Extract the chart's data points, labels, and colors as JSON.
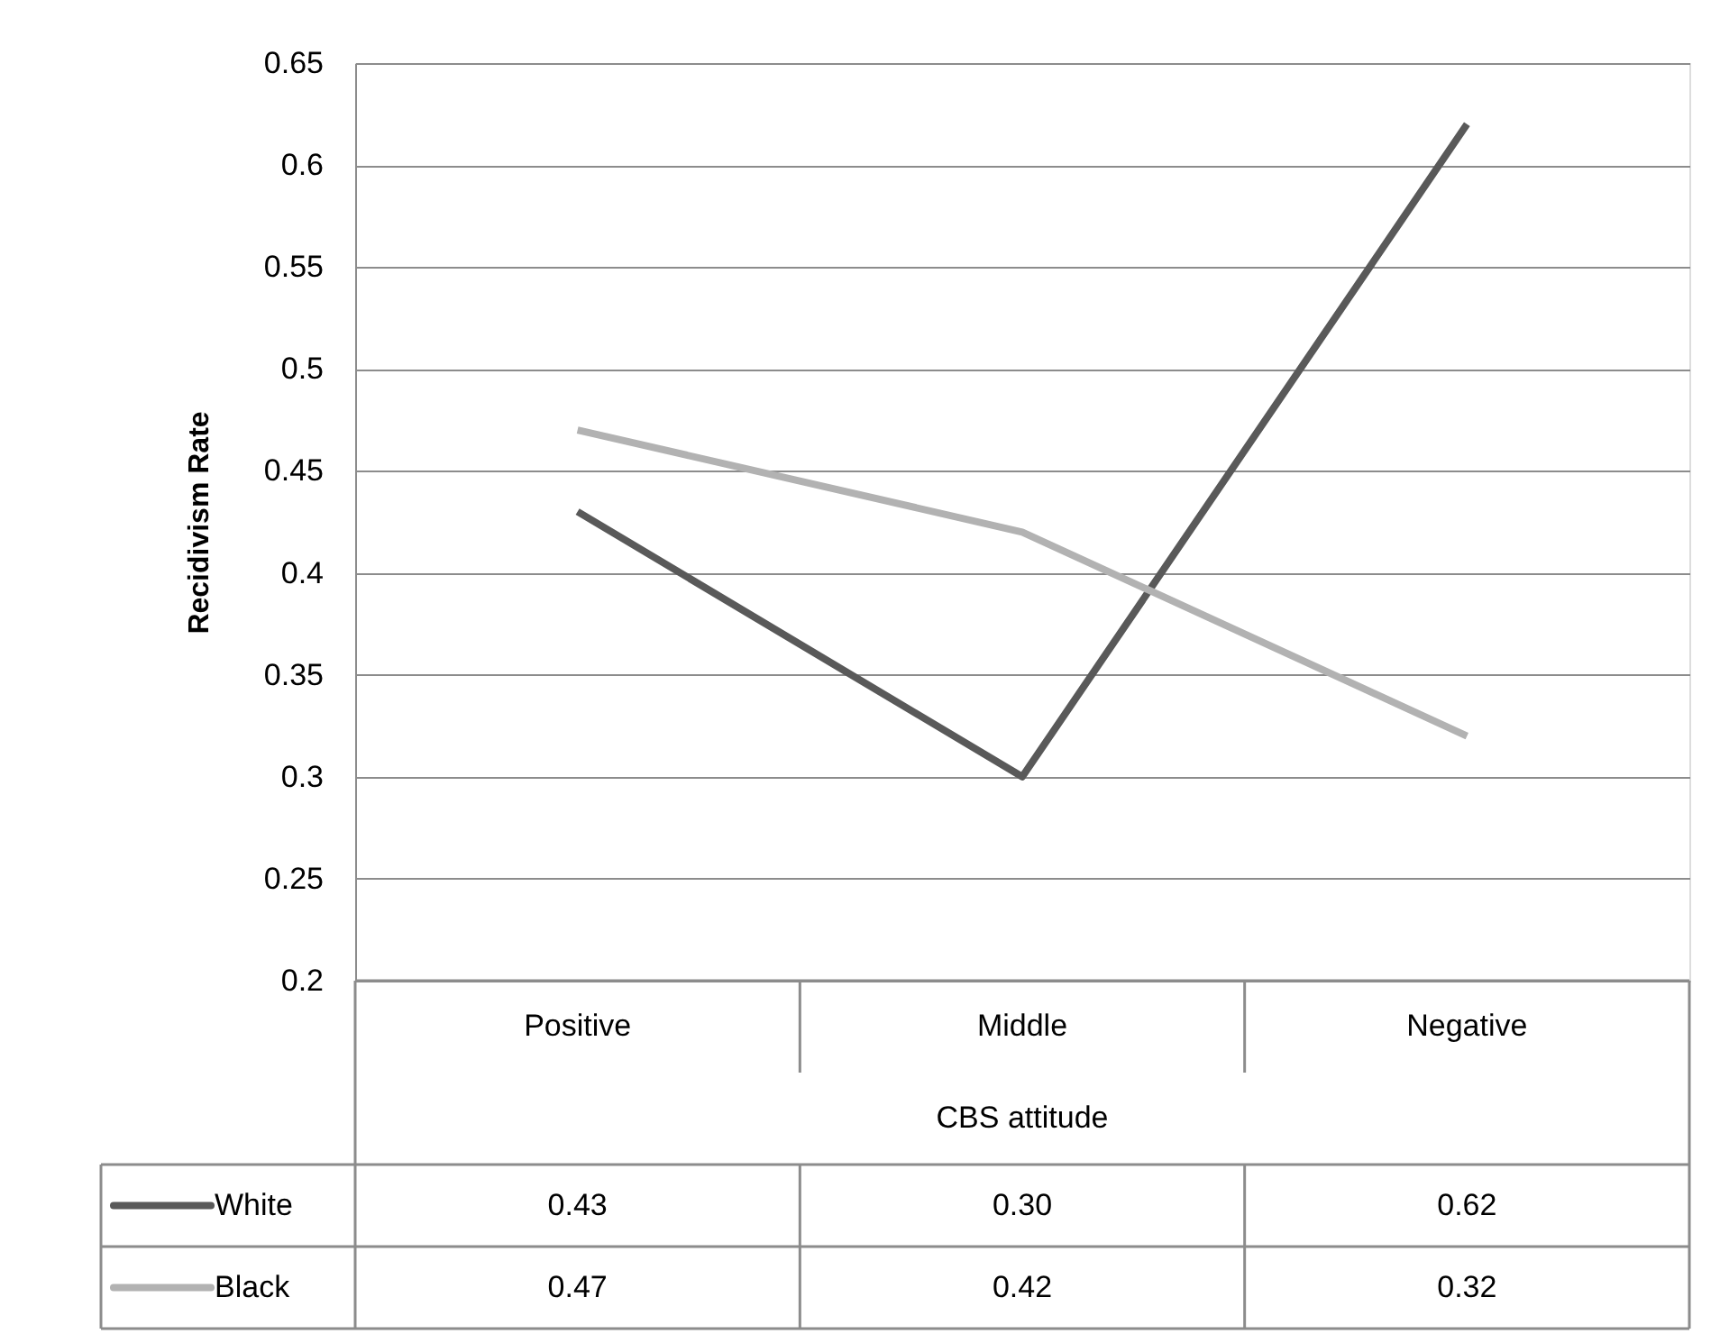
{
  "chart_data": {
    "type": "line",
    "xlabel": "CBS attitude",
    "ylabel": "Recidivism Rate",
    "categories": [
      "Positive",
      "Middle",
      "Negative"
    ],
    "series": [
      {
        "name": "White",
        "color": "#595959",
        "values": [
          0.43,
          0.3,
          0.62
        ],
        "value_labels": [
          "0.43",
          "0.30",
          "0.62"
        ]
      },
      {
        "name": "Black",
        "color": "#b2b2b2",
        "values": [
          0.47,
          0.42,
          0.32
        ],
        "value_labels": [
          "0.47",
          "0.42",
          "0.32"
        ]
      }
    ],
    "ylim": [
      0.2,
      0.65
    ],
    "yticks": [
      0.2,
      0.25,
      0.3,
      0.35,
      0.4,
      0.45,
      0.5,
      0.55,
      0.6,
      0.65
    ],
    "grid": "y",
    "legend": "bottom",
    "marker": "none",
    "line_style": "solid"
  }
}
